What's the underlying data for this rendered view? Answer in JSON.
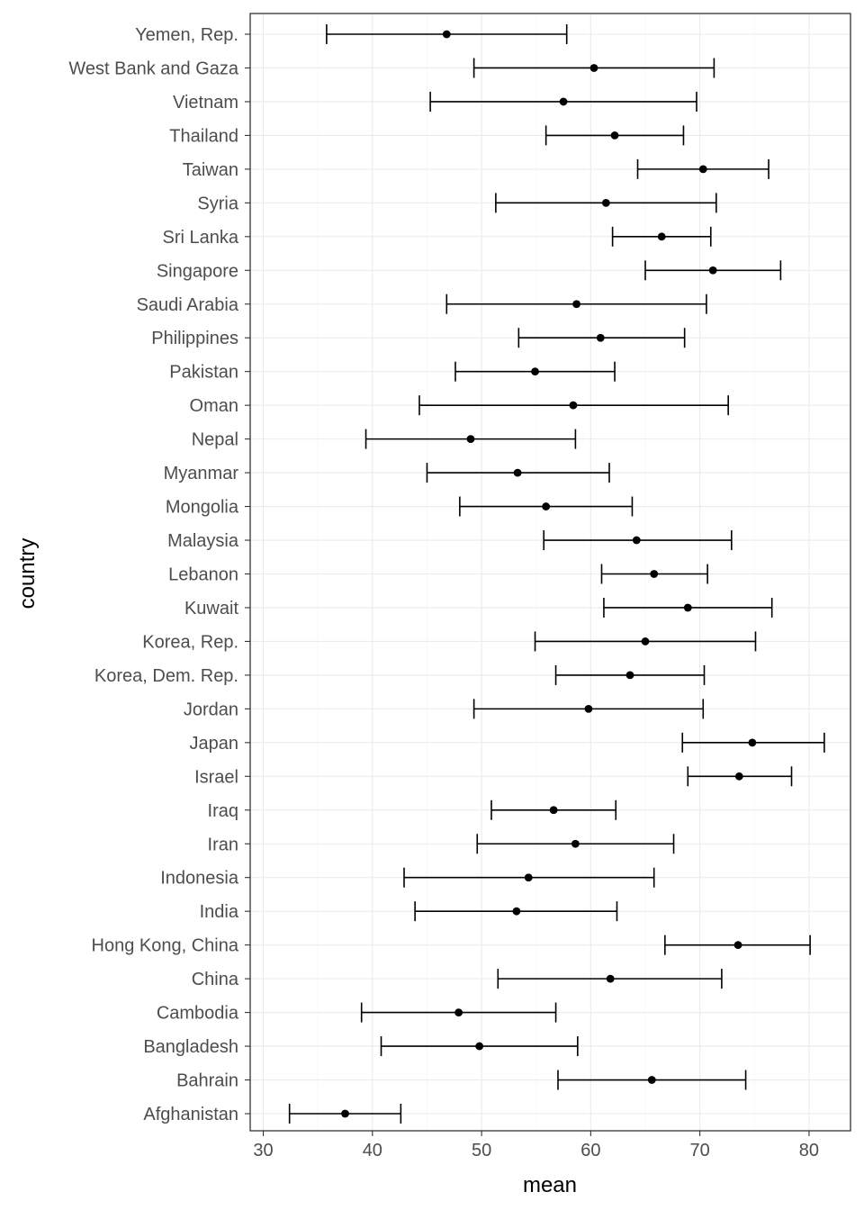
{
  "chart_data": {
    "type": "errorbar",
    "xlabel": "mean",
    "ylabel": "country",
    "xlim": [
      28.8,
      83.8
    ],
    "x_ticks": [
      30,
      40,
      50,
      60,
      70,
      80
    ],
    "grid": true,
    "rows": [
      {
        "country": "Yemen, Rep.",
        "mean": 46.8,
        "lower": 35.8,
        "upper": 57.8
      },
      {
        "country": "West Bank and Gaza",
        "mean": 60.3,
        "lower": 49.3,
        "upper": 71.3
      },
      {
        "country": "Vietnam",
        "mean": 57.5,
        "lower": 45.3,
        "upper": 69.7
      },
      {
        "country": "Thailand",
        "mean": 62.2,
        "lower": 55.9,
        "upper": 68.5
      },
      {
        "country": "Taiwan",
        "mean": 70.3,
        "lower": 64.3,
        "upper": 76.3
      },
      {
        "country": "Syria",
        "mean": 61.4,
        "lower": 51.3,
        "upper": 71.5
      },
      {
        "country": "Sri Lanka",
        "mean": 66.5,
        "lower": 62.0,
        "upper": 71.0
      },
      {
        "country": "Singapore",
        "mean": 71.2,
        "lower": 65.0,
        "upper": 77.4
      },
      {
        "country": "Saudi Arabia",
        "mean": 58.7,
        "lower": 46.8,
        "upper": 70.6
      },
      {
        "country": "Philippines",
        "mean": 60.9,
        "lower": 53.4,
        "upper": 68.6
      },
      {
        "country": "Pakistan",
        "mean": 54.9,
        "lower": 47.6,
        "upper": 62.2
      },
      {
        "country": "Oman",
        "mean": 58.4,
        "lower": 44.3,
        "upper": 72.6
      },
      {
        "country": "Nepal",
        "mean": 49.0,
        "lower": 39.4,
        "upper": 58.6
      },
      {
        "country": "Myanmar",
        "mean": 53.3,
        "lower": 45.0,
        "upper": 61.7
      },
      {
        "country": "Mongolia",
        "mean": 55.9,
        "lower": 48.0,
        "upper": 63.8
      },
      {
        "country": "Malaysia",
        "mean": 64.2,
        "lower": 55.7,
        "upper": 72.9
      },
      {
        "country": "Lebanon",
        "mean": 65.8,
        "lower": 61.0,
        "upper": 70.7
      },
      {
        "country": "Kuwait",
        "mean": 68.9,
        "lower": 61.2,
        "upper": 76.6
      },
      {
        "country": "Korea, Rep.",
        "mean": 65.0,
        "lower": 54.9,
        "upper": 75.1
      },
      {
        "country": "Korea, Dem. Rep.",
        "mean": 63.6,
        "lower": 56.8,
        "upper": 70.4
      },
      {
        "country": "Jordan",
        "mean": 59.8,
        "lower": 49.3,
        "upper": 70.3
      },
      {
        "country": "Japan",
        "mean": 74.8,
        "lower": 68.4,
        "upper": 81.4
      },
      {
        "country": "Israel",
        "mean": 73.6,
        "lower": 68.9,
        "upper": 78.4
      },
      {
        "country": "Iraq",
        "mean": 56.6,
        "lower": 50.9,
        "upper": 62.3
      },
      {
        "country": "Iran",
        "mean": 58.6,
        "lower": 49.6,
        "upper": 67.6
      },
      {
        "country": "Indonesia",
        "mean": 54.3,
        "lower": 42.9,
        "upper": 65.8
      },
      {
        "country": "India",
        "mean": 53.2,
        "lower": 43.9,
        "upper": 62.4
      },
      {
        "country": "Hong Kong, China",
        "mean": 73.5,
        "lower": 66.8,
        "upper": 80.1
      },
      {
        "country": "China",
        "mean": 61.8,
        "lower": 51.5,
        "upper": 72.0
      },
      {
        "country": "Cambodia",
        "mean": 47.9,
        "lower": 39.0,
        "upper": 56.8
      },
      {
        "country": "Bangladesh",
        "mean": 49.8,
        "lower": 40.8,
        "upper": 58.8
      },
      {
        "country": "Bahrain",
        "mean": 65.6,
        "lower": 57.0,
        "upper": 74.2
      },
      {
        "country": "Afghanistan",
        "mean": 37.5,
        "lower": 32.4,
        "upper": 42.6
      }
    ]
  }
}
